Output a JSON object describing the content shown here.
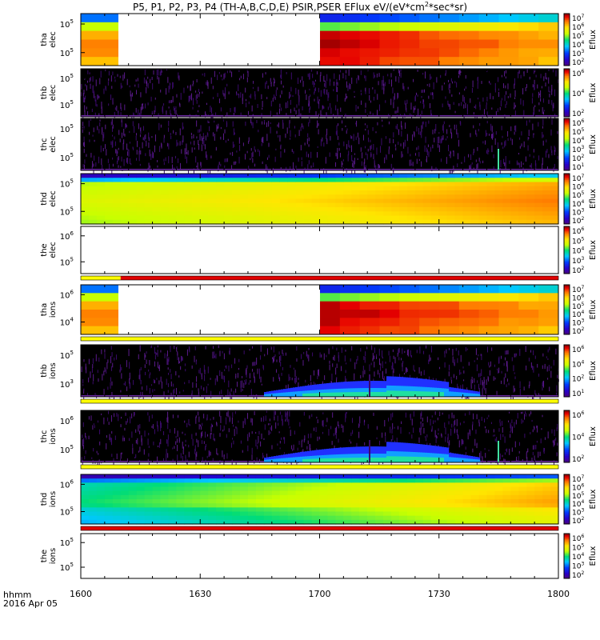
{
  "chart_data": {
    "type": "heatmap",
    "title": "P5, P1, P2, P3, P4 (TH-A,B,C,D,E) PSIR,PSER EFlux eV/(eV*cm2*sec*sr)",
    "title_parts": {
      "pre": "P5, P1, P2, P3, P4 (TH-A,B,C,D,E) PSIR,PSER EFlux eV/(eV*cm",
      "sup": "2",
      "post": "*sec*sr)"
    },
    "x_tick_labels": [
      "1600",
      "1630",
      "1700",
      "1730",
      "1800"
    ],
    "x_footer": [
      "hhmm",
      "2016 Apr 05"
    ],
    "colorbar_label": "Eflux",
    "panels": [
      {
        "id": "tha-elec",
        "ylabel": [
          "tha",
          "elec"
        ],
        "y_ticks": [
          "10",
          "10"
        ],
        "y_exp": [
          "5",
          "5"
        ],
        "cbar_ticks": [
          "10",
          "10",
          "10",
          "10",
          "10",
          "10"
        ],
        "cbar_exp": [
          "7",
          "6",
          "5",
          "4",
          "3",
          "2"
        ],
        "kind": "gap_intense",
        "range": [
          "1600",
          "1800"
        ]
      },
      {
        "id": "thb-elec",
        "ylabel": [
          "thb",
          "elec"
        ],
        "y_ticks": [
          "10",
          "10"
        ],
        "y_exp": [
          "5",
          "5"
        ],
        "cbar_ticks": [
          "10",
          "10",
          "10"
        ],
        "cbar_exp": [
          "6",
          "4",
          "2"
        ],
        "kind": "noise"
      },
      {
        "id": "thc-elec",
        "ylabel": [
          "thc",
          "elec"
        ],
        "y_ticks": [
          "10",
          "10"
        ],
        "y_exp": [
          "5",
          "5"
        ],
        "cbar_ticks": [
          "10",
          "10",
          "10",
          "10",
          "10",
          "10"
        ],
        "cbar_exp": [
          "6",
          "5",
          "4",
          "3",
          "2",
          "1"
        ],
        "kind": "noise_spike"
      },
      {
        "id": "thd-elec",
        "ylabel": [
          "thd",
          "elec"
        ],
        "y_ticks": [
          "10",
          "10"
        ],
        "y_exp": [
          "5",
          "5"
        ],
        "cbar_ticks": [
          "10",
          "10",
          "10",
          "10",
          "10",
          "10"
        ],
        "cbar_exp": [
          "7",
          "6",
          "5",
          "4",
          "3",
          "2"
        ],
        "kind": "smooth"
      },
      {
        "id": "the-elec",
        "ylabel": [
          "the",
          "elec"
        ],
        "y_ticks": [
          "10",
          "10"
        ],
        "y_exp": [
          "6",
          "5"
        ],
        "cbar_ticks": [
          "10",
          "10",
          "10",
          "10",
          "10"
        ],
        "cbar_exp": [
          "6",
          "5",
          "4",
          "3",
          "2"
        ],
        "kind": "empty"
      },
      {
        "id": "tha-ions",
        "ylabel": [
          "tha",
          "ions"
        ],
        "y_ticks": [
          "10",
          "10"
        ],
        "y_exp": [
          "6",
          "4"
        ],
        "cbar_ticks": [
          "10",
          "10",
          "10",
          "10",
          "10",
          "10"
        ],
        "cbar_exp": [
          "7",
          "6",
          "5",
          "4",
          "3",
          "2"
        ],
        "kind": "gap_intense"
      },
      {
        "id": "thb-ions",
        "ylabel": [
          "thb",
          "ions"
        ],
        "y_ticks": [
          "10",
          "10"
        ],
        "y_exp": [
          "5",
          "3"
        ],
        "cbar_ticks": [
          "10",
          "10",
          "10",
          "10"
        ],
        "cbar_exp": [
          "6",
          "4",
          "2",
          "1"
        ],
        "kind": "noise_band"
      },
      {
        "id": "thc-ions",
        "ylabel": [
          "thc",
          "ions"
        ],
        "y_ticks": [
          "10",
          "10"
        ],
        "y_exp": [
          "6",
          "5"
        ],
        "cbar_ticks": [
          "10",
          "10",
          "10"
        ],
        "cbar_exp": [
          "6",
          "4",
          "2"
        ],
        "kind": "noise_band_spike"
      },
      {
        "id": "thd-ions",
        "ylabel": [
          "thd",
          "ions"
        ],
        "y_ticks": [
          "10",
          "10"
        ],
        "y_exp": [
          "6",
          "5"
        ],
        "cbar_ticks": [
          "10",
          "10",
          "10",
          "10",
          "10",
          "10"
        ],
        "cbar_exp": [
          "7",
          "6",
          "5",
          "4",
          "3",
          "2"
        ],
        "kind": "smooth_ions"
      },
      {
        "id": "the-ions",
        "ylabel": [
          "the",
          "ions"
        ],
        "y_ticks": [
          "10",
          "10"
        ],
        "y_exp": [
          "5",
          "5"
        ],
        "cbar_ticks": [
          "10",
          "10",
          "10",
          "10",
          "10"
        ],
        "cbar_exp": [
          "6",
          "5",
          "4",
          "3",
          "2"
        ],
        "kind": "empty"
      }
    ],
    "flag_bars": [
      {
        "after": "the-elec",
        "segments": [
          {
            "color": "#ffff00",
            "from": "1600",
            "to": "1610"
          },
          {
            "color": "#e00000",
            "from": "1610",
            "to": "1800"
          }
        ]
      },
      {
        "after": "tha-ions",
        "segments": [
          {
            "color": "#ffff00",
            "from": "1600",
            "to": "1800"
          }
        ]
      },
      {
        "after": "thb-ions",
        "segments": [
          {
            "color": "#ffff00",
            "from": "1600",
            "to": "1800"
          }
        ]
      },
      {
        "after": "thc-ions",
        "segments": [
          {
            "color": "#ffff00",
            "from": "1600",
            "to": "1800"
          }
        ]
      },
      {
        "after": "thd-ions",
        "segments": [
          {
            "color": "#e00000",
            "from": "1600",
            "to": "1800"
          }
        ]
      }
    ]
  }
}
